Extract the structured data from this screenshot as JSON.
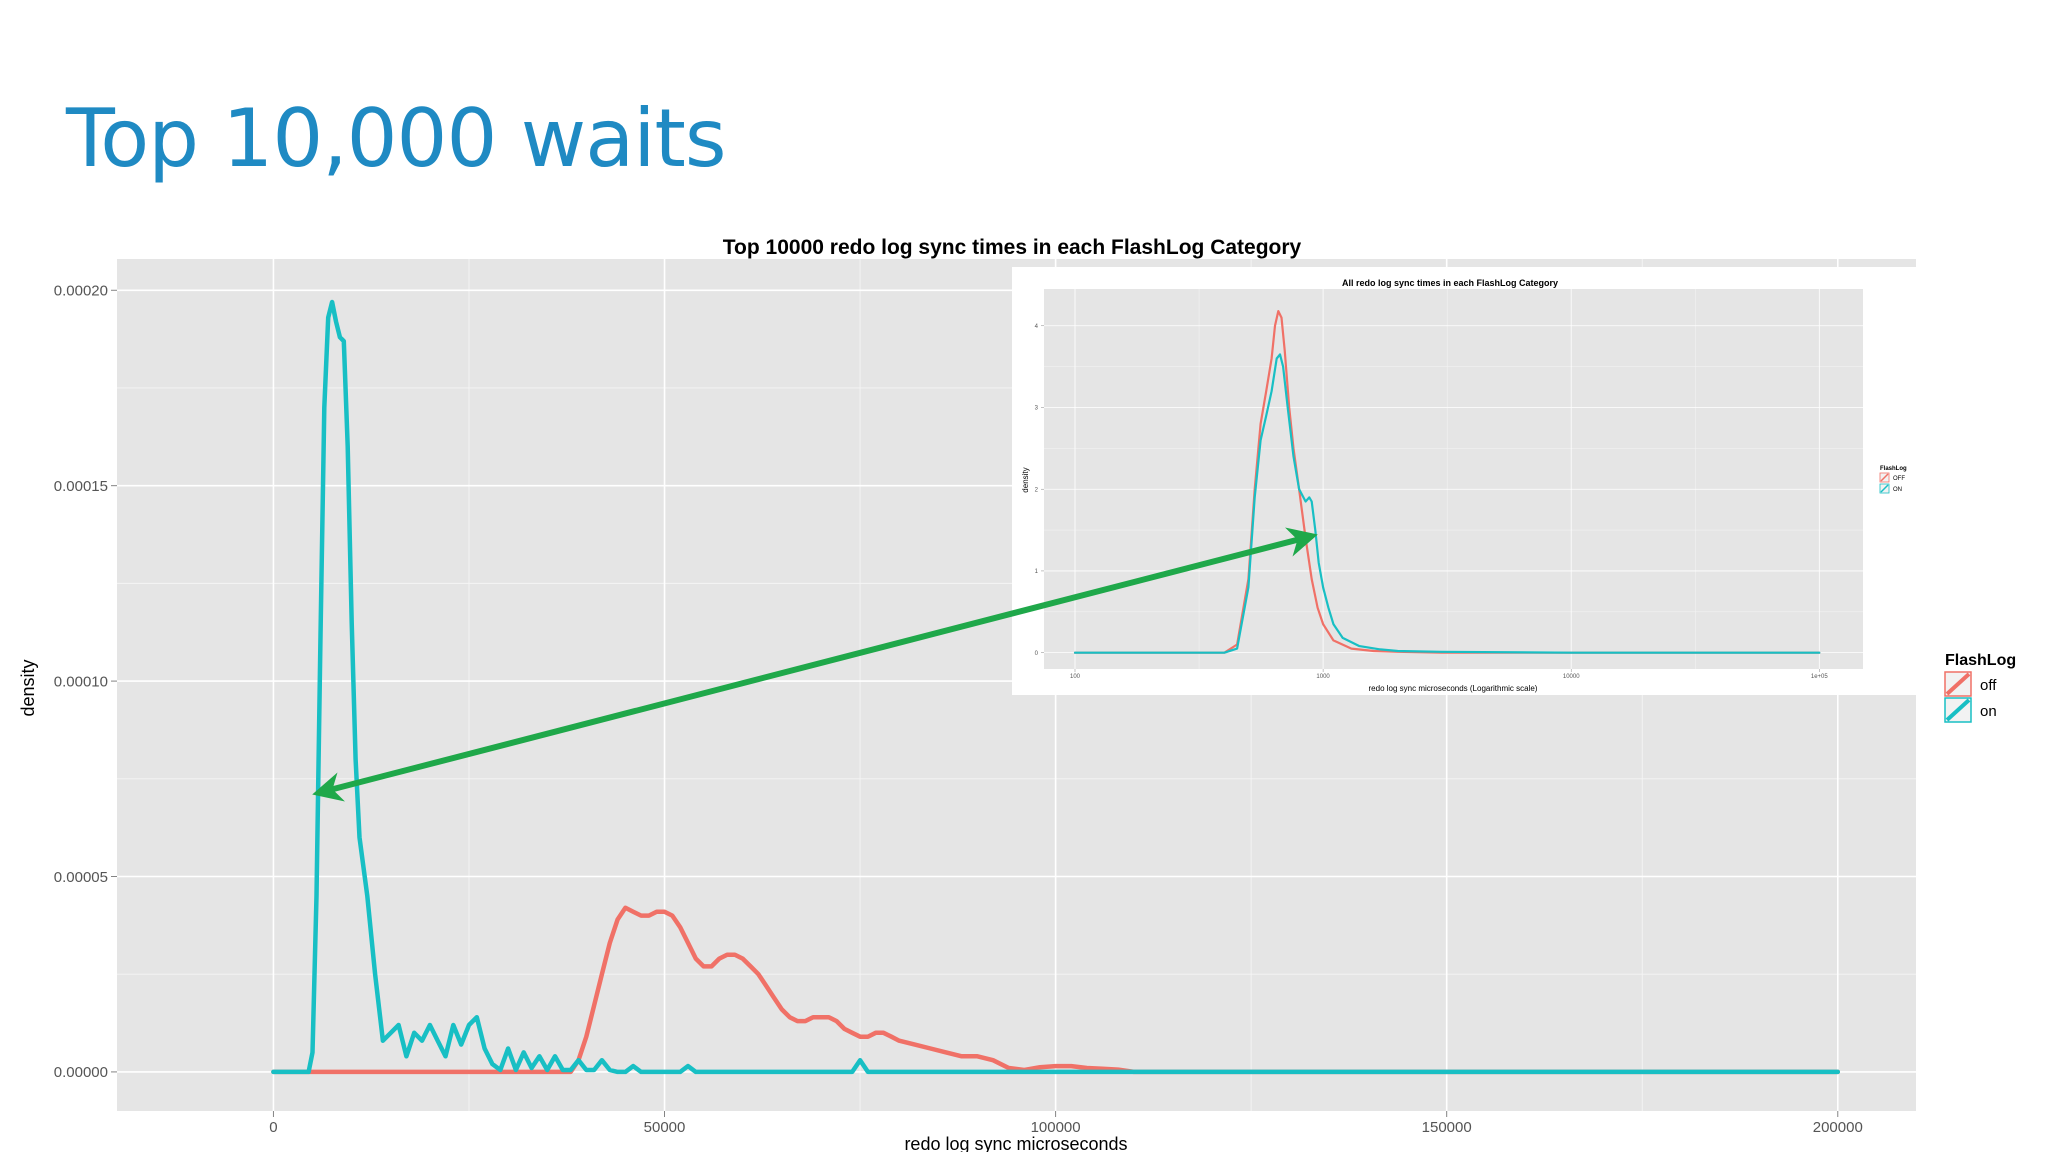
{
  "slide": {
    "title": "Top 10,000 waits"
  },
  "colors": {
    "off": "#f07167",
    "on": "#18bfc4",
    "arrow": "#1fa84a",
    "panel": "#e5e5e5",
    "grid": "#f5f5f5",
    "title": "#1f8ac3"
  },
  "chart_data": [
    {
      "type": "line",
      "title": "Top 10000 redo log sync times in each FlashLog Category",
      "xlabel": "redo log sync microseconds",
      "ylabel": "density",
      "xlim": [
        -20000,
        210000
      ],
      "ylim": [
        -1e-05,
        0.000208
      ],
      "x_ticks": [
        0,
        50000,
        100000,
        150000,
        200000
      ],
      "x_tick_labels": [
        "0",
        "50000",
        "100000",
        "150000",
        "200000"
      ],
      "y_ticks": [
        0,
        5e-05,
        0.0001,
        0.00015,
        0.0002
      ],
      "y_tick_labels": [
        "0.00000",
        "0.00005",
        "0.00010",
        "0.00015",
        "0.00020"
      ],
      "grid": true,
      "legend": {
        "title": "FlashLog",
        "position": "right",
        "entries": [
          "off",
          "on"
        ]
      },
      "series": [
        {
          "name": "off",
          "x": [
            0,
            38000,
            39000,
            40000,
            41000,
            42000,
            43000,
            44000,
            45000,
            46000,
            47000,
            48000,
            49000,
            50000,
            51000,
            52000,
            53000,
            54000,
            55000,
            56000,
            57000,
            58000,
            59000,
            60000,
            61000,
            62000,
            63000,
            64000,
            65000,
            66000,
            67000,
            68000,
            69000,
            70000,
            71000,
            72000,
            73000,
            74000,
            75000,
            76000,
            77000,
            78000,
            79000,
            80000,
            82000,
            84000,
            86000,
            88000,
            90000,
            92000,
            94000,
            96000,
            98000,
            100000,
            102000,
            104000,
            106000,
            108000,
            110000,
            200000
          ],
          "y": [
            0,
            0,
            3e-06,
            9e-06,
            1.7e-05,
            2.5e-05,
            3.3e-05,
            3.9e-05,
            4.2e-05,
            4.1e-05,
            4e-05,
            4e-05,
            4.1e-05,
            4.1e-05,
            4e-05,
            3.7e-05,
            3.3e-05,
            2.9e-05,
            2.7e-05,
            2.7e-05,
            2.9e-05,
            3e-05,
            3e-05,
            2.9e-05,
            2.7e-05,
            2.5e-05,
            2.2e-05,
            1.9e-05,
            1.6e-05,
            1.4e-05,
            1.3e-05,
            1.3e-05,
            1.4e-05,
            1.4e-05,
            1.4e-05,
            1.3e-05,
            1.1e-05,
            1e-05,
            9e-06,
            9e-06,
            1e-05,
            1e-05,
            9e-06,
            8e-06,
            7e-06,
            6e-06,
            5e-06,
            4e-06,
            4e-06,
            3e-06,
            1e-06,
            5e-07,
            1.2e-06,
            1.5e-06,
            1.5e-06,
            1e-06,
            8e-07,
            6e-07,
            0,
            0
          ]
        },
        {
          "name": "on",
          "x": [
            0,
            4500,
            5000,
            5500,
            6000,
            6500,
            7000,
            7500,
            8000,
            8500,
            9000,
            9500,
            10000,
            10500,
            11000,
            12000,
            13000,
            14000,
            15000,
            16000,
            17000,
            18000,
            19000,
            20000,
            21000,
            22000,
            23000,
            24000,
            25000,
            26000,
            27000,
            28000,
            29000,
            30000,
            31000,
            32000,
            33000,
            34000,
            35000,
            36000,
            37000,
            38000,
            39000,
            40000,
            41000,
            42000,
            43000,
            44000,
            45000,
            46000,
            47000,
            48000,
            49000,
            50000,
            52000,
            53000,
            54000,
            55000,
            60000,
            70000,
            74000,
            75000,
            76000,
            77000,
            80000,
            100000,
            150000,
            200000
          ],
          "y": [
            0,
            0,
            5e-06,
            4.5e-05,
            0.00011,
            0.00017,
            0.000193,
            0.000197,
            0.000192,
            0.000188,
            0.000187,
            0.00016,
            0.000115,
            8e-05,
            6e-05,
            4.5e-05,
            2.5e-05,
            8e-06,
            1e-05,
            1.2e-05,
            4e-06,
            1e-05,
            8e-06,
            1.2e-05,
            8e-06,
            4e-06,
            1.2e-05,
            7e-06,
            1.2e-05,
            1.4e-05,
            6e-06,
            2e-06,
            5e-07,
            6e-06,
            5e-07,
            5e-06,
            1e-06,
            4e-06,
            5e-07,
            4e-06,
            5e-07,
            5e-07,
            3e-06,
            5e-07,
            5e-07,
            3e-06,
            5e-07,
            0,
            0,
            1.5e-06,
            0,
            0,
            0,
            0,
            0,
            1.5e-06,
            0,
            0,
            0,
            0,
            0,
            3e-06,
            0,
            0,
            0,
            0,
            0,
            0
          ]
        }
      ]
    },
    {
      "type": "line",
      "title": "All redo log sync times in each FlashLog Category",
      "xlabel": "redo log sync microseconds (Logarithmic scale)",
      "ylabel": "density",
      "x_scale": "log",
      "xlim": [
        75,
        150000
      ],
      "ylim": [
        -0.2,
        4.45
      ],
      "x_ticks": [
        100,
        1000,
        10000,
        100000
      ],
      "x_tick_labels": [
        "100",
        "1000",
        "10000",
        "1e+05"
      ],
      "y_ticks": [
        0,
        1,
        2,
        3,
        4
      ],
      "y_tick_labels": [
        "0",
        "1",
        "2",
        "3",
        "4"
      ],
      "grid": true,
      "legend": {
        "title": "FlashLog",
        "position": "right",
        "entries": [
          "OFF",
          "ON"
        ]
      },
      "series": [
        {
          "name": "OFF",
          "x": [
            100,
            400,
            450,
            500,
            530,
            560,
            590,
            620,
            640,
            660,
            680,
            700,
            730,
            760,
            800,
            850,
            900,
            950,
            1000,
            1100,
            1300,
            1600,
            2000,
            3000,
            10000,
            100000
          ],
          "y": [
            0,
            0,
            0.1,
            0.9,
            2.0,
            2.8,
            3.2,
            3.6,
            4.0,
            4.18,
            4.1,
            3.7,
            3.0,
            2.5,
            2.0,
            1.4,
            0.9,
            0.55,
            0.35,
            0.15,
            0.05,
            0.02,
            0.01,
            0,
            0,
            0
          ]
        },
        {
          "name": "ON",
          "x": [
            100,
            400,
            450,
            500,
            530,
            560,
            590,
            620,
            650,
            670,
            690,
            720,
            760,
            800,
            850,
            880,
            900,
            930,
            960,
            1000,
            1050,
            1100,
            1200,
            1400,
            1700,
            2000,
            3000,
            10000,
            100000
          ],
          "y": [
            0,
            0,
            0.05,
            0.8,
            1.9,
            2.6,
            2.9,
            3.2,
            3.6,
            3.65,
            3.5,
            3.0,
            2.4,
            2.0,
            1.85,
            1.9,
            1.85,
            1.5,
            1.1,
            0.8,
            0.55,
            0.35,
            0.18,
            0.08,
            0.04,
            0.02,
            0.01,
            0,
            0
          ]
        }
      ]
    }
  ]
}
